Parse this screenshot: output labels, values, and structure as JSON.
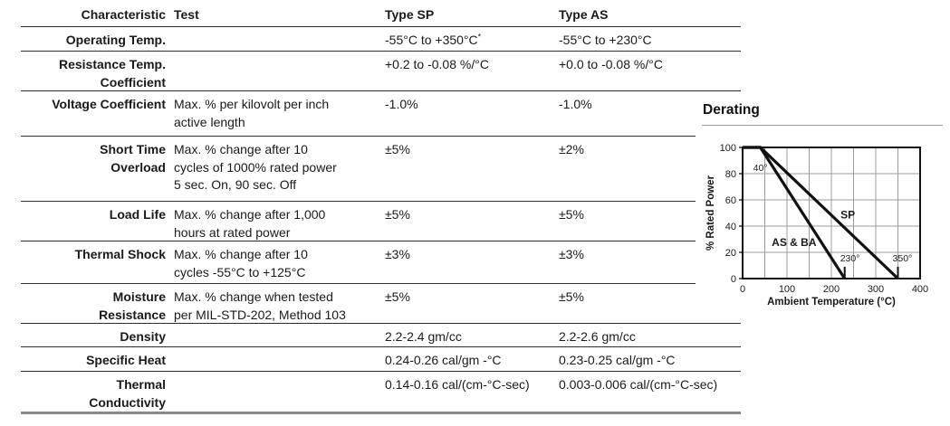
{
  "table": {
    "headers": {
      "characteristic": "Characteristic",
      "test": "Test",
      "type_sp": "Type SP",
      "type_as": "Type AS"
    },
    "rows": [
      {
        "characteristic_lines": [
          "Operating Temp."
        ],
        "test_lines": [],
        "type_sp": "-55°C to +350°C*",
        "type_as": "-55°C to +230°C"
      },
      {
        "characteristic_lines": [
          "Resistance Temp.",
          "Coefficient"
        ],
        "test_lines": [],
        "type_sp": "+0.2 to -0.08 %/°C",
        "type_as": "+0.0 to -0.08 %/°C"
      },
      {
        "characteristic_lines": [
          "Voltage Coefficient"
        ],
        "test_lines": [
          "Max. % per kilovolt per inch",
          "active length"
        ],
        "type_sp": "-1.0%",
        "type_as": "-1.0%"
      },
      {
        "characteristic_lines": [
          "Short Time",
          "Overload"
        ],
        "test_lines": [
          "Max. % change after 10",
          "cycles of 1000% rated power",
          "5 sec. On, 90 sec. Off"
        ],
        "type_sp": "±5%",
        "type_as": "±2%"
      },
      {
        "characteristic_lines": [
          "Load Life"
        ],
        "test_lines": [
          "Max. % change after 1,000",
          "hours at rated power"
        ],
        "type_sp": "±5%",
        "type_as": "±5%"
      },
      {
        "characteristic_lines": [
          "Thermal Shock"
        ],
        "test_lines": [
          "Max. % change after 10",
          "cycles -55°C to +125°C"
        ],
        "type_sp": "±3%",
        "type_as": "±3%"
      },
      {
        "characteristic_lines": [
          "Moisture",
          "Resistance"
        ],
        "test_lines": [
          "Max. % change when tested",
          "per MIL-STD-202, Method 103"
        ],
        "type_sp": "±5%",
        "type_as": "±5%"
      },
      {
        "characteristic_lines": [
          "Density"
        ],
        "test_lines": [],
        "type_sp": "2.2-2.4 gm/cc",
        "type_as": "2.2-2.6 gm/cc"
      },
      {
        "characteristic_lines": [
          "Specific Heat"
        ],
        "test_lines": [],
        "type_sp": "0.24-0.26 cal/gm -°C",
        "type_as": "0.23-0.25 cal/gm -°C"
      },
      {
        "characteristic_lines": [
          "Thermal",
          "Conductivity"
        ],
        "test_lines": [],
        "type_sp": "0.14-0.16 cal/(cm-°C-sec)",
        "type_as": "0.003-0.006 cal/(cm-°C-sec)"
      }
    ]
  },
  "derating": {
    "title": "Derating"
  },
  "chart_data": {
    "type": "line",
    "title": "Derating",
    "xlabel": "Ambient Temperature (°C)",
    "ylabel": "% Rated Power",
    "xlim": [
      0,
      400
    ],
    "ylim": [
      0,
      100
    ],
    "x_ticks": [
      0,
      100,
      200,
      300,
      400
    ],
    "y_ticks": [
      0,
      20,
      40,
      60,
      80,
      100
    ],
    "x_grid_step": 50,
    "y_grid_step": 20,
    "grid": true,
    "legend_position": "none",
    "series": [
      {
        "name": "SP",
        "points": [
          [
            0,
            100
          ],
          [
            40,
            100
          ],
          [
            350,
            0
          ]
        ]
      },
      {
        "name": "AS & BA",
        "points": [
          [
            0,
            100
          ],
          [
            40,
            100
          ],
          [
            230,
            0
          ]
        ]
      }
    ],
    "end_ticks": [
      230,
      350
    ],
    "annotations": [
      {
        "text": "40°",
        "x": 40,
        "y": 82,
        "bold": false
      },
      {
        "text": "SP",
        "x": 237,
        "y": 46,
        "bold": true
      },
      {
        "text": "AS & BA",
        "x": 116,
        "y": 25,
        "bold": true
      },
      {
        "text": "230°",
        "x": 242,
        "y": 13,
        "bold": false
      },
      {
        "text": "350°",
        "x": 360,
        "y": 13,
        "bold": false
      }
    ]
  }
}
